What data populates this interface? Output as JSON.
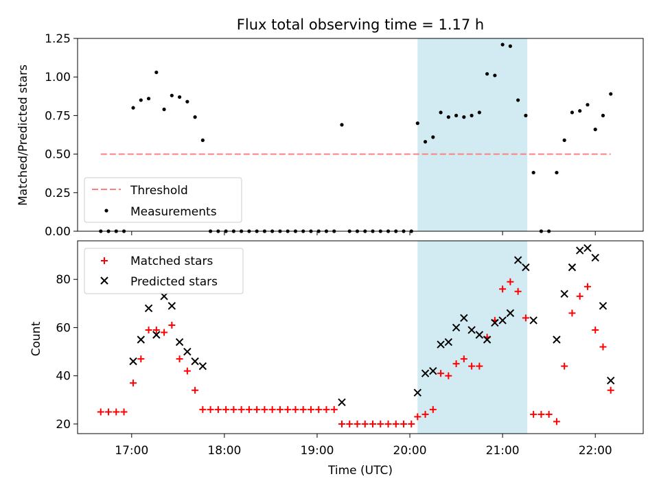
{
  "title": "Flux total observing time = 1.17 h",
  "colors": {
    "threshold": "#ff7f7f",
    "measurement": "#000000",
    "matched": "#ff0000",
    "predicted": "#000000",
    "shade": "#add8e6"
  },
  "chart_data": [
    {
      "type": "scatter",
      "panel": "top",
      "ylabel": "Matched/Predicted stars",
      "ylim": [
        0,
        1.25
      ],
      "yticks": [
        "0.00",
        "0.25",
        "0.50",
        "0.75",
        "1.00",
        "1.25"
      ],
      "xlim": [
        "16:25",
        "22:31"
      ],
      "x_tick_positions": [
        "17:00",
        "18:00",
        "19:00",
        "20:00",
        "21:00",
        "22:00"
      ],
      "x_tick_labels_visible": false,
      "shaded_span": [
        "20:05",
        "21:16"
      ],
      "threshold": {
        "name": "Threshold",
        "value": 0.5,
        "x_range": [
          "16:40",
          "22:10"
        ],
        "style": "dashed"
      },
      "legend": {
        "location": "lower left",
        "entries": [
          "Threshold",
          "Measurements"
        ]
      },
      "series": [
        {
          "name": "Measurements",
          "x": [
            "16:40",
            "16:45",
            "16:50",
            "16:55",
            "17:01",
            "17:06",
            "17:11",
            "17:16",
            "17:21",
            "17:26",
            "17:31",
            "17:36",
            "17:41",
            "17:46",
            "17:51",
            "17:56",
            "18:01",
            "18:06",
            "18:11",
            "18:16",
            "18:21",
            "18:26",
            "18:31",
            "18:36",
            "18:41",
            "18:46",
            "18:51",
            "18:56",
            "19:01",
            "19:06",
            "19:11",
            "19:16",
            "19:21",
            "19:26",
            "19:31",
            "19:36",
            "19:41",
            "19:46",
            "19:51",
            "19:56",
            "20:01",
            "20:05",
            "20:10",
            "20:15",
            "20:20",
            "20:25",
            "20:30",
            "20:35",
            "20:40",
            "20:45",
            "20:50",
            "20:55",
            "21:00",
            "21:05",
            "21:10",
            "21:15",
            "21:20",
            "21:25",
            "21:30",
            "21:35",
            "21:40",
            "21:45",
            "21:50",
            "21:55",
            "22:00",
            "22:05",
            "22:10"
          ],
          "y": [
            0,
            0,
            0,
            0,
            0.8,
            0.85,
            0.86,
            1.03,
            0.79,
            0.88,
            0.87,
            0.84,
            0.74,
            0.59,
            0,
            0,
            0,
            0,
            0,
            0,
            0,
            0,
            0,
            0,
            0,
            0,
            0,
            0,
            0,
            0,
            0,
            0.69,
            0,
            0,
            0,
            0,
            0,
            0,
            0,
            0,
            0,
            0.7,
            0.58,
            0.61,
            0.77,
            0.74,
            0.75,
            0.74,
            0.75,
            0.77,
            1.02,
            1.01,
            1.21,
            1.2,
            0.85,
            0.75,
            0.38,
            0,
            0,
            0.38,
            0.59,
            0.77,
            0.78,
            0.82,
            0.66,
            0.75,
            0.89
          ]
        }
      ]
    },
    {
      "type": "scatter",
      "panel": "bottom",
      "xlabel": "Time (UTC)",
      "ylabel": "Count",
      "ylim": [
        16,
        96
      ],
      "yticks": [
        "20",
        "40",
        "60",
        "80"
      ],
      "xlim": [
        "16:25",
        "22:31"
      ],
      "xticks": [
        "17:00",
        "18:00",
        "19:00",
        "20:00",
        "21:00",
        "22:00"
      ],
      "shaded_span": [
        "20:05",
        "21:16"
      ],
      "legend": {
        "location": "upper left",
        "entries": [
          "Matched stars",
          "Predicted stars"
        ]
      },
      "series": [
        {
          "name": "Matched stars",
          "marker": "+",
          "x": [
            "16:40",
            "16:45",
            "16:50",
            "16:55",
            "17:01",
            "17:06",
            "17:11",
            "17:16",
            "17:21",
            "17:26",
            "17:31",
            "17:36",
            "17:41",
            "17:46",
            "17:51",
            "17:56",
            "18:01",
            "18:06",
            "18:11",
            "18:16",
            "18:21",
            "18:26",
            "18:31",
            "18:36",
            "18:41",
            "18:46",
            "18:51",
            "18:56",
            "19:01",
            "19:06",
            "19:11",
            "19:16",
            "19:21",
            "19:26",
            "19:31",
            "19:36",
            "19:41",
            "19:46",
            "19:51",
            "19:56",
            "20:01",
            "20:05",
            "20:10",
            "20:15",
            "20:20",
            "20:25",
            "20:30",
            "20:35",
            "20:40",
            "20:45",
            "20:50",
            "20:55",
            "21:00",
            "21:05",
            "21:10",
            "21:15",
            "21:20",
            "21:25",
            "21:30",
            "21:35",
            "21:40",
            "21:45",
            "21:50",
            "21:55",
            "22:00",
            "22:05",
            "22:10"
          ],
          "y": [
            25,
            25,
            25,
            25,
            37,
            47,
            59,
            59,
            58,
            61,
            47,
            42,
            34,
            26,
            26,
            26,
            26,
            26,
            26,
            26,
            26,
            26,
            26,
            26,
            26,
            26,
            26,
            26,
            26,
            26,
            26,
            20,
            20,
            20,
            20,
            20,
            20,
            20,
            20,
            20,
            20,
            23,
            24,
            26,
            41,
            40,
            45,
            47,
            44,
            44,
            56,
            63,
            76,
            79,
            75,
            64,
            24,
            24,
            24,
            21,
            44,
            66,
            73,
            77,
            59,
            52,
            34
          ]
        },
        {
          "name": "Predicted stars",
          "marker": "x",
          "x": [
            "17:01",
            "17:06",
            "17:11",
            "17:16",
            "17:21",
            "17:26",
            "17:31",
            "17:36",
            "17:41",
            "17:46",
            "19:16",
            "20:05",
            "20:10",
            "20:15",
            "20:20",
            "20:25",
            "20:30",
            "20:35",
            "20:40",
            "20:45",
            "20:50",
            "20:55",
            "21:00",
            "21:05",
            "21:10",
            "21:15",
            "21:20",
            "21:35",
            "21:40",
            "21:45",
            "21:50",
            "21:55",
            "22:00",
            "22:05",
            "22:10"
          ],
          "y": [
            46,
            55,
            68,
            57,
            73,
            69,
            54,
            50,
            46,
            44,
            29,
            33,
            41,
            42,
            53,
            54,
            60,
            64,
            59,
            57,
            55,
            62,
            63,
            66,
            88,
            85,
            63,
            55,
            74,
            85,
            92,
            93,
            89,
            69,
            38
          ]
        }
      ]
    }
  ]
}
